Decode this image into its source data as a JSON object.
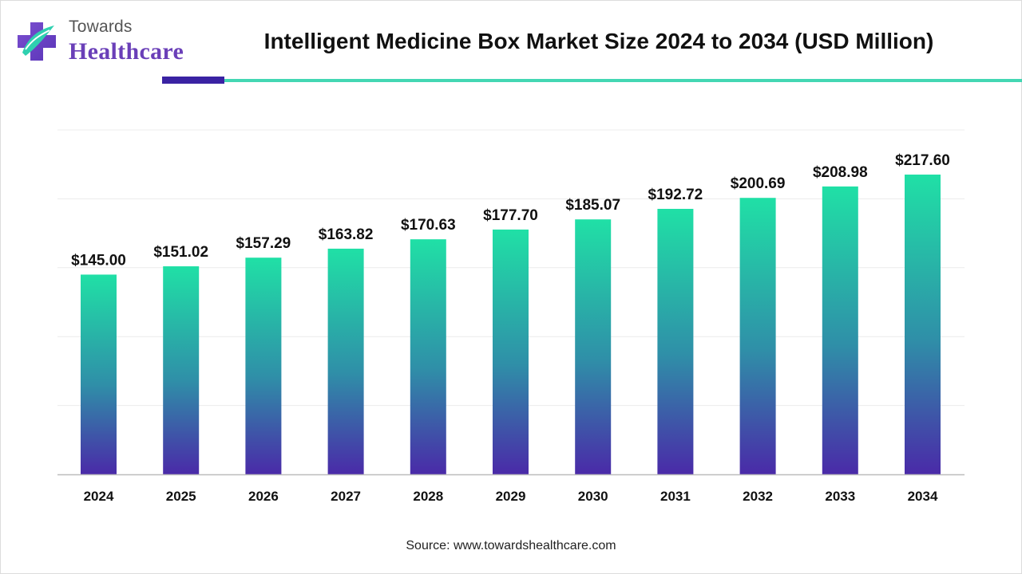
{
  "logo": {
    "line1": "Towards",
    "line2": "Healthcare"
  },
  "title": "Intelligent Medicine Box Market Size 2024 to 2034 (USD Million)",
  "source": "Source: www.towardshealthcare.com",
  "colors": {
    "bar_top": "#20e0a6",
    "bar_bottom": "#4a2aa8",
    "accent_dark": "#3a22a3",
    "accent_teal": "#43d7b3",
    "logo_purple": "#6a3fb8"
  },
  "chart_data": {
    "type": "bar",
    "title": "Intelligent Medicine Box Market Size 2024 to 2034 (USD Million)",
    "categories": [
      "2024",
      "2025",
      "2026",
      "2027",
      "2028",
      "2029",
      "2030",
      "2031",
      "2032",
      "2033",
      "2034"
    ],
    "values": [
      145.0,
      151.02,
      157.29,
      163.82,
      170.63,
      177.7,
      185.07,
      192.72,
      200.69,
      208.98,
      217.6
    ],
    "value_labels": [
      "$145.00",
      "$151.02",
      "$157.29",
      "$163.82",
      "$170.63",
      "$177.70",
      "$185.07",
      "$192.72",
      "$200.69",
      "$208.98",
      "$217.60"
    ],
    "xlabel": "",
    "ylabel": "",
    "ylim": [
      0,
      250
    ],
    "grid": true,
    "legend": "none"
  }
}
